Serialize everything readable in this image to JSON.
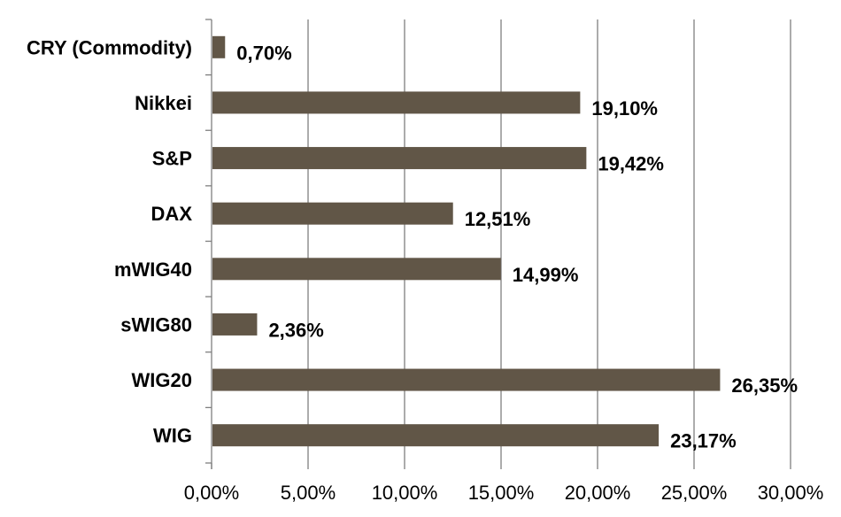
{
  "chart_data": {
    "type": "bar",
    "orientation": "horizontal",
    "categories": [
      "CRY (Commodity)",
      "Nikkei",
      "S&P",
      "DAX",
      "mWIG40",
      "sWIG80",
      "WIG20",
      "WIG"
    ],
    "values": [
      0.7,
      19.1,
      19.42,
      12.51,
      14.99,
      2.36,
      26.35,
      23.17
    ],
    "value_labels": [
      "0,70%",
      "19,10%",
      "19,42%",
      "12,51%",
      "14,99%",
      "2,36%",
      "26,35%",
      "23,17%"
    ],
    "x_ticks": [
      0,
      5,
      10,
      15,
      20,
      25,
      30
    ],
    "x_tick_labels": [
      "0,00%",
      "5,00%",
      "10,00%",
      "15,00%",
      "20,00%",
      "25,00%",
      "30,00%"
    ],
    "xlim": [
      0,
      30
    ],
    "grid": true,
    "legend": "none",
    "bar_color": "#615647",
    "grid_color": "#7f7f7f"
  }
}
